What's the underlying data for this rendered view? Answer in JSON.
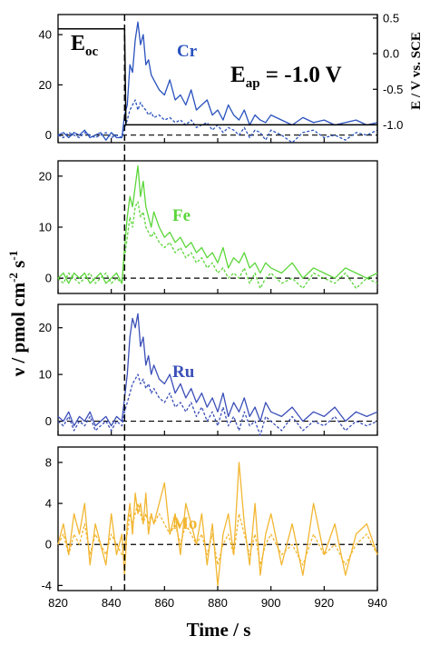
{
  "chart_data": [
    {
      "type": "line",
      "element": "Cr",
      "color": "#2a52be",
      "ylim": [
        -3,
        48
      ],
      "yticks": [
        0,
        20,
        40
      ],
      "x": [
        820,
        822,
        824,
        826,
        828,
        830,
        832,
        834,
        836,
        838,
        840,
        842,
        844,
        845,
        846,
        847,
        848,
        849,
        850,
        851,
        852,
        853,
        854,
        855,
        856,
        858,
        860,
        862,
        864,
        866,
        868,
        870,
        872,
        874,
        876,
        878,
        880,
        882,
        884,
        886,
        888,
        890,
        892,
        894,
        896,
        898,
        900,
        904,
        908,
        912,
        916,
        920,
        924,
        928,
        932,
        936,
        940
      ],
      "series": [
        {
          "style": "solid",
          "values": [
            0,
            1,
            -1,
            1,
            0,
            2,
            -1,
            0,
            1,
            -2,
            1,
            -1,
            -1,
            8,
            12,
            28,
            25,
            38,
            45,
            36,
            40,
            28,
            30,
            24,
            22,
            18,
            16,
            22,
            14,
            16,
            12,
            18,
            10,
            12,
            14,
            8,
            10,
            6,
            12,
            8,
            6,
            10,
            4,
            8,
            6,
            5,
            8,
            6,
            4,
            7,
            5,
            6,
            4,
            5,
            6,
            4,
            5
          ]
        },
        {
          "style": "dashed",
          "values": [
            0,
            -1,
            1,
            0,
            -1,
            1,
            0,
            -1,
            0,
            1,
            -1,
            0,
            -1,
            3,
            6,
            10,
            12,
            14,
            10,
            13,
            11,
            10,
            8,
            9,
            7,
            8,
            6,
            7,
            5,
            6,
            4,
            6,
            3,
            4,
            5,
            2,
            4,
            1,
            3,
            2,
            0,
            3,
            -1,
            2,
            1,
            -2,
            2,
            0,
            -3,
            1,
            2,
            -1,
            0,
            -2,
            1,
            0,
            2
          ]
        }
      ],
      "potential": {
        "right_axis_ylim": [
          -1.25,
          0.55
        ],
        "right_axis_yticks": [
          0.5,
          0.0,
          -0.5,
          -1.0
        ],
        "right_axis_tick_labels": [
          "0.5",
          "0.0",
          "-0.5",
          "-1.0"
        ],
        "right_axis_label": "E / V vs. SCE",
        "x": [
          820,
          845,
          845.5,
          940
        ],
        "values": [
          0.35,
          0.35,
          -1.0,
          -1.0
        ]
      },
      "annotations": {
        "eoc_main": "E",
        "eoc_sub": "oc",
        "eap_main": "E",
        "eap_sub": "ap",
        "eap_value": " = -1.0 V"
      }
    },
    {
      "type": "line",
      "element": "Fe",
      "color": "#5bd63a",
      "ylim": [
        -3,
        23
      ],
      "yticks": [
        0,
        10,
        20
      ],
      "x": [
        820,
        822,
        824,
        826,
        828,
        830,
        832,
        834,
        836,
        838,
        840,
        842,
        844,
        845,
        846,
        847,
        848,
        849,
        850,
        851,
        852,
        853,
        854,
        855,
        856,
        858,
        860,
        862,
        864,
        866,
        868,
        870,
        872,
        874,
        876,
        878,
        880,
        882,
        884,
        886,
        888,
        890,
        892,
        894,
        896,
        898,
        900,
        904,
        908,
        912,
        916,
        920,
        924,
        928,
        932,
        936,
        940
      ],
      "series": [
        {
          "style": "solid",
          "values": [
            0,
            1,
            -1,
            1,
            0,
            1,
            -1,
            0,
            1,
            -1,
            0,
            1,
            -1,
            6,
            12,
            16,
            14,
            18,
            22,
            16,
            19,
            14,
            12,
            10,
            13,
            10,
            8,
            9,
            7,
            8,
            6,
            7,
            5,
            6,
            4,
            5,
            3,
            6,
            2,
            4,
            3,
            5,
            2,
            3,
            1,
            3,
            2,
            1,
            3,
            0,
            2,
            1,
            0,
            2,
            1,
            0,
            1
          ]
        },
        {
          "style": "dashed",
          "values": [
            0,
            -1,
            1,
            0,
            -1,
            0,
            1,
            -1,
            0,
            1,
            -1,
            0,
            -1,
            4,
            8,
            12,
            10,
            14,
            15,
            12,
            13,
            10,
            9,
            8,
            9,
            7,
            6,
            7,
            5,
            6,
            4,
            5,
            3,
            4,
            2,
            3,
            1,
            2,
            0,
            1,
            0,
            2,
            -1,
            1,
            -2,
            0,
            1,
            -1,
            0,
            -2,
            1,
            0,
            -1,
            1,
            -2,
            0,
            -1
          ]
        }
      ]
    },
    {
      "type": "line",
      "element": "Ru",
      "color": "#3b4fb8",
      "ylim": [
        -3,
        25
      ],
      "yticks": [
        0,
        10,
        20
      ],
      "x": [
        820,
        822,
        824,
        826,
        828,
        830,
        832,
        834,
        836,
        838,
        840,
        842,
        844,
        845,
        846,
        847,
        848,
        849,
        850,
        851,
        852,
        853,
        854,
        855,
        856,
        858,
        860,
        862,
        864,
        866,
        868,
        870,
        872,
        874,
        876,
        878,
        880,
        882,
        884,
        886,
        888,
        890,
        892,
        894,
        896,
        898,
        900,
        904,
        908,
        912,
        916,
        920,
        924,
        928,
        932,
        936,
        940
      ],
      "series": [
        {
          "style": "solid",
          "values": [
            1,
            0,
            2,
            -1,
            1,
            0,
            2,
            -1,
            0,
            1,
            -1,
            1,
            0,
            5,
            10,
            18,
            22,
            20,
            23,
            16,
            18,
            12,
            14,
            10,
            12,
            9,
            8,
            10,
            6,
            8,
            5,
            7,
            4,
            6,
            3,
            5,
            2,
            6,
            1,
            4,
            2,
            5,
            1,
            3,
            0,
            4,
            2,
            1,
            3,
            0,
            2,
            1,
            3,
            0,
            2,
            1,
            2
          ]
        },
        {
          "style": "dashed",
          "values": [
            0,
            -1,
            1,
            -2,
            0,
            -1,
            1,
            -2,
            -1,
            0,
            -2,
            0,
            -1,
            2,
            4,
            6,
            8,
            9,
            10,
            8,
            9,
            7,
            8,
            6,
            7,
            5,
            4,
            6,
            3,
            4,
            2,
            4,
            1,
            3,
            0,
            2,
            -1,
            3,
            -1,
            1,
            -2,
            2,
            -1,
            0,
            -3,
            1,
            0,
            -2,
            1,
            -2,
            0,
            -1,
            1,
            -2,
            0,
            -1,
            0
          ]
        }
      ]
    },
    {
      "type": "line",
      "element": "Mo",
      "color": "#f2b632",
      "ylim": [
        -4.5,
        9.5
      ],
      "yticks": [
        -4,
        0,
        4,
        8
      ],
      "x": [
        820,
        822,
        824,
        826,
        828,
        830,
        832,
        834,
        836,
        838,
        840,
        842,
        844,
        845,
        846,
        847,
        848,
        849,
        850,
        851,
        852,
        853,
        854,
        855,
        856,
        858,
        860,
        862,
        864,
        866,
        868,
        870,
        872,
        874,
        876,
        878,
        880,
        882,
        884,
        886,
        888,
        890,
        892,
        894,
        896,
        898,
        900,
        904,
        908,
        912,
        916,
        920,
        924,
        928,
        932,
        936,
        940
      ],
      "series": [
        {
          "style": "solid",
          "values": [
            0,
            2,
            -1,
            3,
            1,
            4,
            -2,
            2,
            0,
            -2,
            3,
            -1,
            1,
            -3,
            2,
            4,
            1,
            5,
            3,
            4,
            2,
            5,
            1,
            3,
            2,
            4,
            6,
            1,
            3,
            -1,
            4,
            2,
            0,
            3,
            -2,
            2,
            -4,
            1,
            3,
            -1,
            8,
            2,
            -2,
            4,
            -3,
            1,
            3,
            -2,
            2,
            -3,
            4,
            -1,
            2,
            -3,
            1,
            2,
            -1
          ]
        },
        {
          "style": "dashed",
          "values": [
            0,
            1,
            -1,
            1,
            0,
            2,
            -1,
            1,
            0,
            -1,
            1,
            0,
            -1,
            0,
            1,
            3,
            2,
            3,
            4,
            3,
            2,
            3,
            2,
            3,
            2,
            3,
            2,
            1,
            2,
            0,
            2,
            1,
            0,
            1,
            -1,
            1,
            -2,
            0,
            1,
            -1,
            3,
            1,
            -1,
            1,
            -2,
            0,
            1,
            -1,
            0,
            -2,
            1,
            -1,
            0,
            -2,
            0,
            1,
            -1
          ]
        }
      ]
    }
  ],
  "shared": {
    "xlim": [
      820,
      940
    ],
    "xticks": [
      820,
      840,
      860,
      880,
      900,
      920,
      940
    ],
    "xlabel": "Time / s",
    "ylabel_main": "ν / pmol cm",
    "ylabel_sup1": "-2",
    "ylabel_mid": " s",
    "ylabel_sup2": "-1",
    "switch_time": 845
  }
}
